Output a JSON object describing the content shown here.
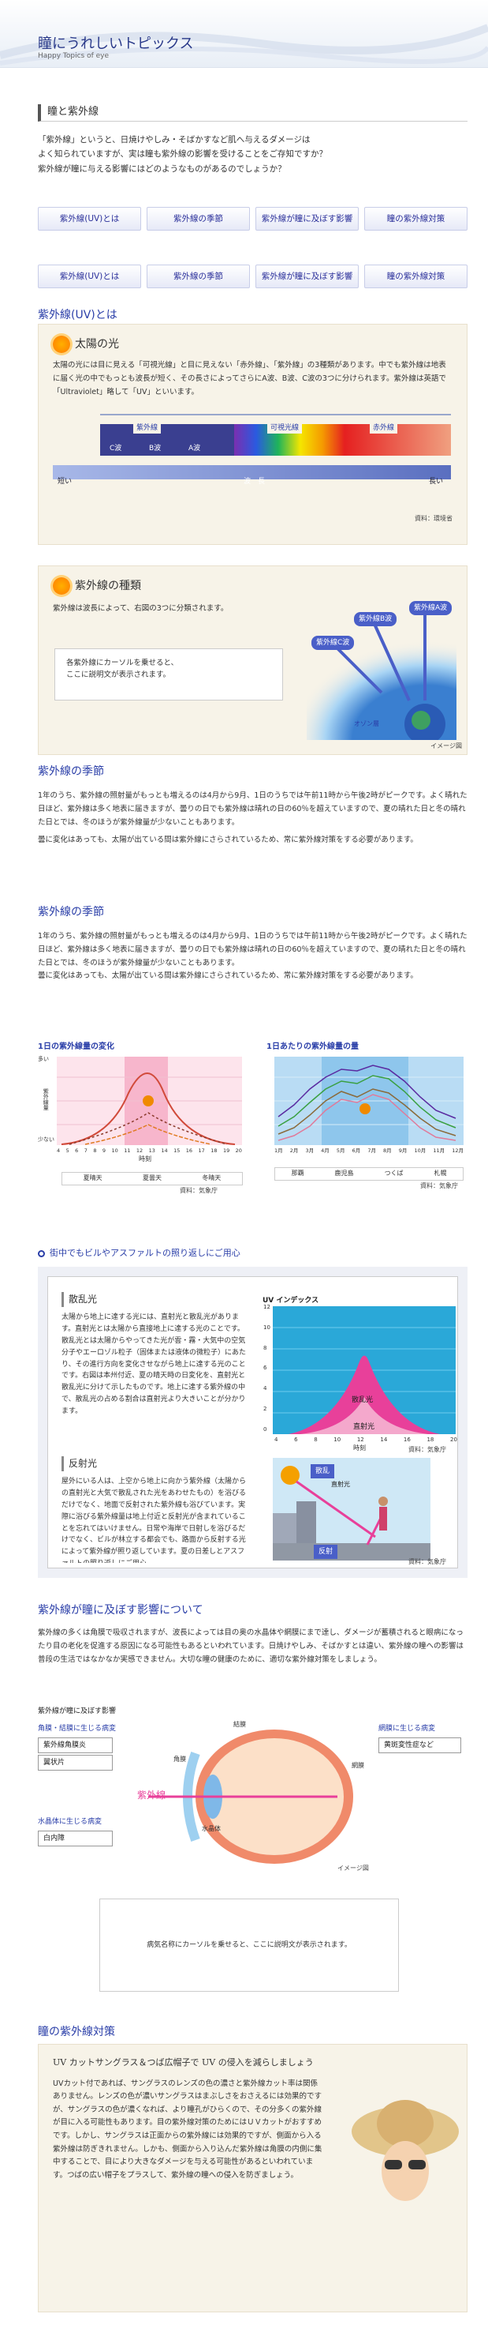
{
  "header": {
    "title": "瞳にうれしいトピックス",
    "subtitle": "Happy Topics of eye"
  },
  "section1": {
    "heading": "瞳と紫外線",
    "intro": "「紫外線」というと、日焼けやしみ・そばかすなど肌へ与えるダメージは\nよく知られていますが、実は瞳も紫外線の影響を受けることをご存知ですか？\n紫外線が瞳に与える影響にはどのようなものがあるのでしょうか？"
  },
  "tabs": [
    "紫外線(UV)とは",
    "紫外線の季節",
    "紫外線が瞳に及ぼす影響",
    "瞳の紫外線対策"
  ],
  "uv": {
    "heading": "紫外線(UV)とは",
    "sunlight": {
      "title": "太陽の光",
      "text": "太陽の光には目に見える「可視光線」と目に見えない「赤外線」、「紫外線」の3種類があります。中でも紫外線は地表に届く光の中でもっとも波長が短く、その長さによってさらにA波、B波、C波の3つに分けられます。紫外線は英語で「Ultraviolet」略して「UV」といいます。",
      "band_uv": "紫外線",
      "band_visible": "可視光線",
      "band_ir": "赤外線",
      "c": "C波",
      "b": "B波",
      "a": "A波",
      "short": "短い",
      "wave": "波　長",
      "long": "長い",
      "source": "資料：環境省"
    },
    "types": {
      "title": "紫外線の種類",
      "text": "紫外線は波長によって、右図の3つに分類されます。",
      "hint": "各紫外線にカーソルを乗せると、\nここに説明文が表示されます。",
      "uvc": "紫外線C波",
      "uvb": "紫外線B波",
      "uva": "紫外線A波",
      "ozone": "オゾン層",
      "note": "イメージ図"
    }
  },
  "season": {
    "heading": "紫外線の季節",
    "text1": "1年のうち、紫外線の照射量がもっとも増えるのは4月から9月、1日のうちでは午前11時から午後2時がピークです。よく晴れた日ほど、紫外線は多く地表に届きますが、曇りの日でも紫外線は晴れの日の60％を超えていますので、夏の晴れた日と冬の晴れた日とでは、冬のほうが紫外線量が少ないこともあります。",
    "text2": "曇に変化はあっても、太陽が出ている間は紫外線にさらされているため、常に紫外線対策をする必要があります。",
    "chart1": {
      "title": "1日の紫外線量の変化",
      "ylabel": "紫外線量",
      "yhi": "多い",
      "ylo": "少ない",
      "xlabel": "時刻",
      "hours": [
        "4",
        "5",
        "6",
        "7",
        "8",
        "9",
        "10",
        "11",
        "12",
        "13",
        "14",
        "15",
        "16",
        "17",
        "18",
        "19",
        "20"
      ],
      "legend": [
        "夏晴天",
        "夏曇天",
        "冬晴天"
      ],
      "source": "資料：気象庁"
    },
    "chart2": {
      "title": "1日あたりの紫外線量の量",
      "months": [
        "1月",
        "2月",
        "3月",
        "4月",
        "5月",
        "6月",
        "7月",
        "8月",
        "9月",
        "10月",
        "11月",
        "12月"
      ],
      "legend": [
        "那覇",
        "鹿児島",
        "つくば",
        "札幌"
      ],
      "source": "資料：気象庁"
    }
  },
  "reflect": {
    "heading": "街中でもビルやアスファルトの照り返しにご用心",
    "scatter": {
      "title": "散乱光",
      "text": "太陽から地上に達する光には、直射光と散乱光があります。直射光とは太陽から直接地上に達する光のことです。散乱光とは太陽からやってきた光が雲・霧・大気中の空気分子やエーロゾル粒子（固体または液体の微粒子）にあたり、その進行方向を変化させながら地上に達する光のことです。右図は本州付近、夏の晴天時の日変化を、直射光と散乱光に分けて示したものです。地上に達する紫外線の中で、散乱光の占める割合は直射光より大きいことが分かります。"
    },
    "uvindex": {
      "title": "UV インデックス",
      "scattered": "散乱光",
      "direct": "直射光",
      "xlabel": "時刻",
      "ticks": [
        "4",
        "6",
        "8",
        "10",
        "12",
        "14",
        "16",
        "18",
        "20"
      ],
      "yticks": [
        "12",
        "10",
        "8",
        "6",
        "4",
        "2",
        "0"
      ],
      "source": "資料：気象庁"
    },
    "reflected": {
      "title": "反射光",
      "text": "屋外にいる人は、上空から地上に向かう紫外線（太陽からの直射光と大気で散乱された光をあわせたもの）を浴びるだけでなく、地面で反射された紫外線も浴びています。実際に浴びる紫外線量は地上付近と反射光が含まれていることを忘れてはいけません。日常や海岸で日射しを浴びるだけでなく、ビルが林立する都会でも、路面から反射する光によって紫外線が照り返しています。夏の日差しとアスファルトの照り返しにご用心。",
      "scatter_lbl": "散乱",
      "direct_lbl": "直射光",
      "reflect_lbl": "反射",
      "source": "資料：気象庁"
    }
  },
  "effect": {
    "heading": "紫外線が瞳に及ぼす影響について",
    "text": "紫外線の多くは角膜で吸収されますが、波長によっては目の奥の水晶体や網膜にまで達し、ダメージが蓄積されると眼病になったり目の老化を促進する原因になる可能性もあるといわれています。日焼けやしみ、そばかすとは違い、紫外線の瞳への影響は普段の生活ではなかなか実感できません。大切な瞳の健康のために、適切な紫外線対策をしましょう。",
    "diagram": {
      "title": "紫外線が瞳に及ぼす影響",
      "g1": "角膜・結膜に生じる病変",
      "g1items": [
        "紫外線角膜炎",
        "翼状片"
      ],
      "g2": "水晶体に生じる病変",
      "g2items": [
        "白内障"
      ],
      "g3": "網膜に生じる病変",
      "g3items": [
        "黄斑変性症など"
      ],
      "conj": "結膜",
      "cornea": "角膜",
      "retina": "網膜",
      "lens": "水晶体",
      "uv": "紫外線",
      "note": "イメージ図",
      "hint": "病気名称にカーソルを乗せると、ここに説明文が表示されます。"
    }
  },
  "protect": {
    "heading": "瞳の紫外線対策",
    "title": "UV カットサングラス＆つば広帽子で UV の侵入を減らしましょう",
    "text": "UVカット付であれば、サングラスのレンズの色の濃さと紫外線カット率は関係ありません。レンズの色が濃いサングラスはまぶしさをおさえるには効果的ですが、サングラスの色が濃くなれば、より瞳孔がひらくので、その分多くの紫外線が目に入る可能性もあります。目の紫外線対策のためにはＵＶカットがおすすめです。しかし、サングラスは正面からの紫外線には効果的ですが、側面から入る紫外線は防ぎきれません。しかも、側面から入り込んだ紫外線は角膜の内側に集中することで、目により大きなダメージを与える可能性があるといわれています。つばの広い帽子をプラスして、紫外線の瞳への侵入を防ぎましょう。"
  }
}
